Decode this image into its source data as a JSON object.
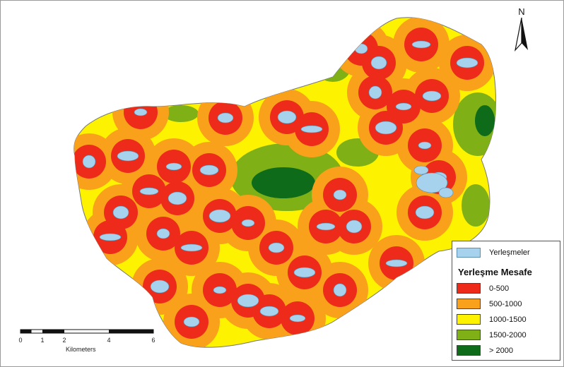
{
  "north": {
    "label": "N"
  },
  "scale_bar": {
    "ticks": [
      "0",
      "1",
      "2",
      "4",
      "6"
    ],
    "unit": "Kilometers"
  },
  "legend": {
    "settlement": {
      "label": "Yerleşmeler",
      "color": "#a6d2ee"
    },
    "title": "Yerleşme Mesafe",
    "classes": [
      {
        "label": "0-500",
        "color": "#ee2a1a"
      },
      {
        "label": "500-1000",
        "color": "#f9a11b"
      },
      {
        "label": "1000-1500",
        "color": "#fdf200"
      },
      {
        "label": "1500-2000",
        "color": "#7fb015"
      },
      {
        "label": "> 2000",
        "color": "#0d6b1a"
      }
    ]
  }
}
